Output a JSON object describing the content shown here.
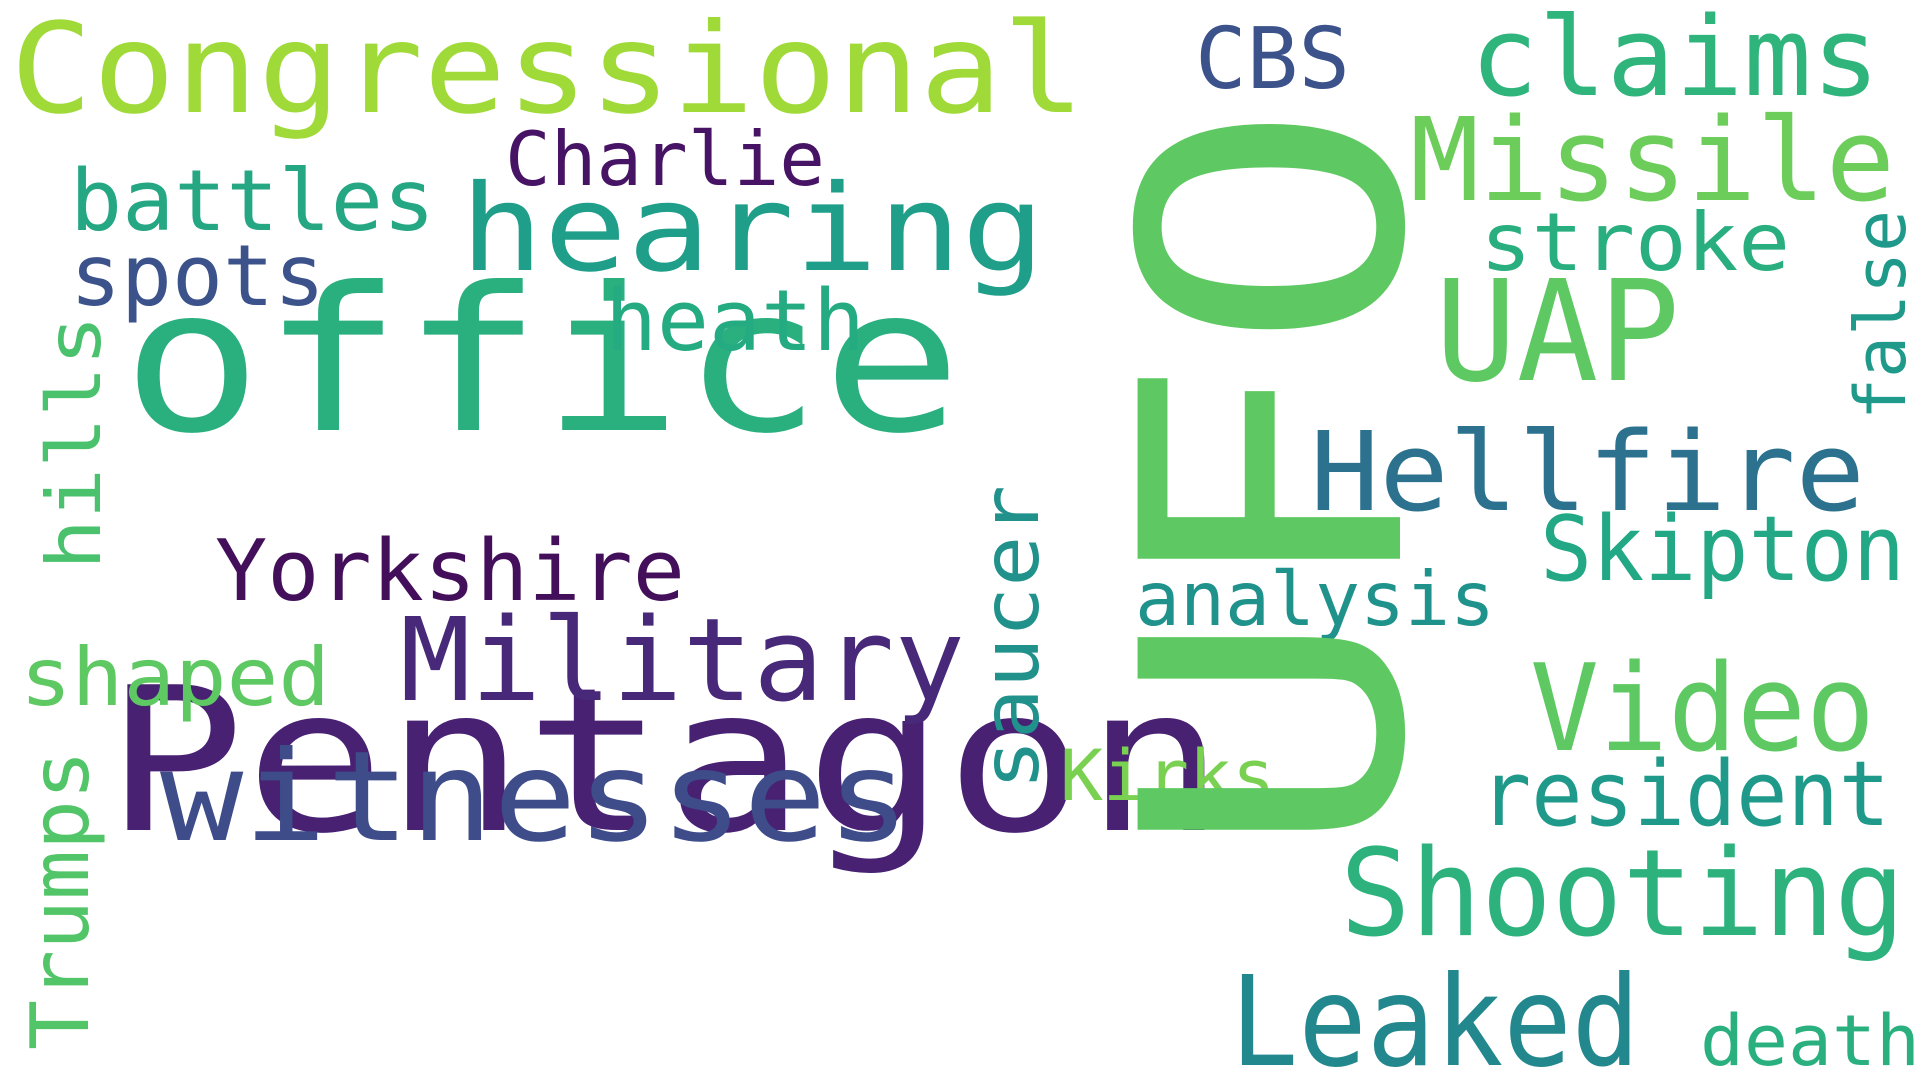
{
  "words": [
    {
      "text": "UFO",
      "color": "#5ec962"
    },
    {
      "text": "Pentagon",
      "color": "#482173"
    },
    {
      "text": "office",
      "color": "#2aaf7f"
    },
    {
      "text": "Congressional",
      "color": "#a0da39"
    },
    {
      "text": "hearing",
      "color": "#1f9e89"
    },
    {
      "text": "witnesses",
      "color": "#3e4c8a"
    },
    {
      "text": "Military",
      "color": "#482878"
    },
    {
      "text": "Shooting",
      "color": "#2db27d"
    },
    {
      "text": "Leaked",
      "color": "#23888e"
    },
    {
      "text": "Missile",
      "color": "#6ccd5a"
    },
    {
      "text": "claims",
      "color": "#2fb47c"
    },
    {
      "text": "UAP",
      "color": "#5ec962"
    },
    {
      "text": "Hellfire",
      "color": "#2c728e"
    },
    {
      "text": "Video",
      "color": "#5ec962"
    },
    {
      "text": "Skipton",
      "color": "#22a884"
    },
    {
      "text": "resident",
      "color": "#1f9a8a"
    },
    {
      "text": "Yorkshire",
      "color": "#440f5a"
    },
    {
      "text": "battles",
      "color": "#26a784"
    },
    {
      "text": "spots",
      "color": "#3b528b"
    },
    {
      "text": "heath",
      "color": "#25ab82"
    },
    {
      "text": "stroke",
      "color": "#29af7f"
    },
    {
      "text": "Charlie",
      "color": "#471365"
    },
    {
      "text": "CBS",
      "color": "#3b528b"
    },
    {
      "text": "analysis",
      "color": "#20928c"
    },
    {
      "text": "shaped",
      "color": "#5ec962"
    },
    {
      "text": "Kirks",
      "color": "#7ad151"
    },
    {
      "text": "death",
      "color": "#2ab07f"
    },
    {
      "text": "saucer",
      "color": "#21918c"
    },
    {
      "text": "hills",
      "color": "#4ac16d"
    },
    {
      "text": "false",
      "color": "#1f998a"
    },
    {
      "text": "Trumps",
      "color": "#52c569"
    }
  ]
}
